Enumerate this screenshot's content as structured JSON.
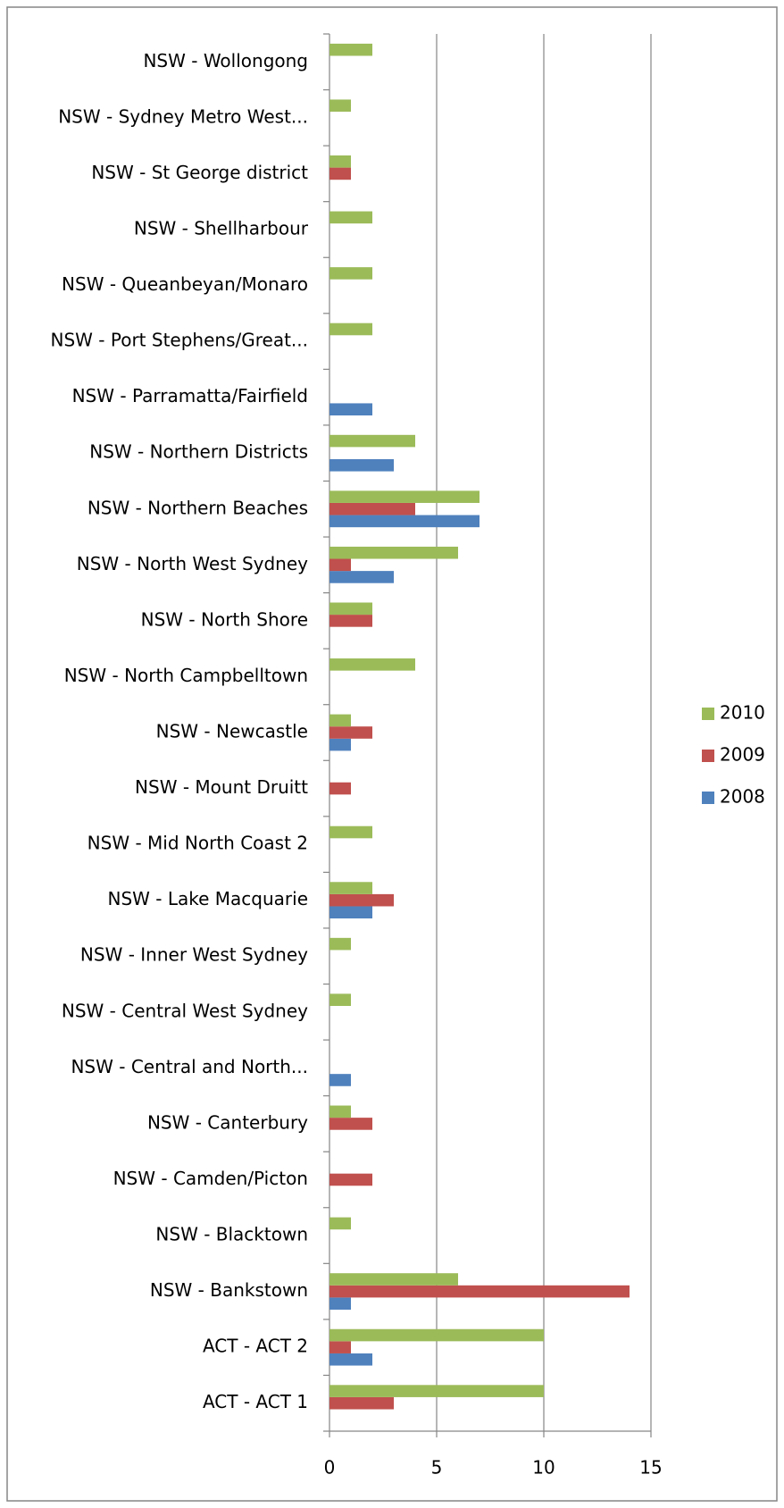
{
  "chart_data": {
    "type": "bar",
    "orientation": "horizontal",
    "categories": [
      "ACT - ACT 1",
      "ACT - ACT 2",
      "NSW - Bankstown",
      "NSW - Blacktown",
      "NSW - Camden/Picton",
      "NSW - Canterbury",
      "NSW - Central and North...",
      "NSW - Central West Sydney",
      "NSW - Inner West Sydney",
      "NSW - Lake Macquarie",
      "NSW - Mid North Coast 2",
      "NSW - Mount Druitt",
      "NSW - Newcastle",
      "NSW - North Campbelltown",
      "NSW - North Shore",
      "NSW - North West Sydney",
      "NSW - Northern Beaches",
      "NSW - Northern Districts",
      "NSW - Parramatta/Fairfield",
      "NSW - Port Stephens/Great...",
      "NSW - Queanbeyan/Monaro",
      "NSW - Shellharbour",
      "NSW - St George district",
      "NSW - Sydney Metro West...",
      "NSW - Wollongong"
    ],
    "series": [
      {
        "name": "2008",
        "color": "#4f81bd",
        "values": [
          null,
          2,
          1,
          null,
          null,
          null,
          1,
          null,
          null,
          2,
          null,
          null,
          1,
          null,
          null,
          3,
          7,
          3,
          2,
          null,
          null,
          null,
          null,
          null,
          null
        ]
      },
      {
        "name": "2009",
        "color": "#c0504d",
        "values": [
          3,
          1,
          14,
          null,
          2,
          2,
          null,
          null,
          null,
          3,
          null,
          1,
          2,
          null,
          2,
          1,
          4,
          null,
          null,
          null,
          null,
          null,
          1,
          null,
          null
        ]
      },
      {
        "name": "2010",
        "color": "#9bbb59",
        "values": [
          10,
          10,
          6,
          1,
          null,
          1,
          null,
          1,
          1,
          2,
          2,
          null,
          1,
          4,
          2,
          6,
          7,
          4,
          null,
          2,
          2,
          2,
          1,
          1,
          2
        ]
      }
    ],
    "xlim": [
      0,
      15
    ],
    "xticks": [
      0,
      5,
      10,
      15
    ],
    "grid": true,
    "legend": "right"
  }
}
